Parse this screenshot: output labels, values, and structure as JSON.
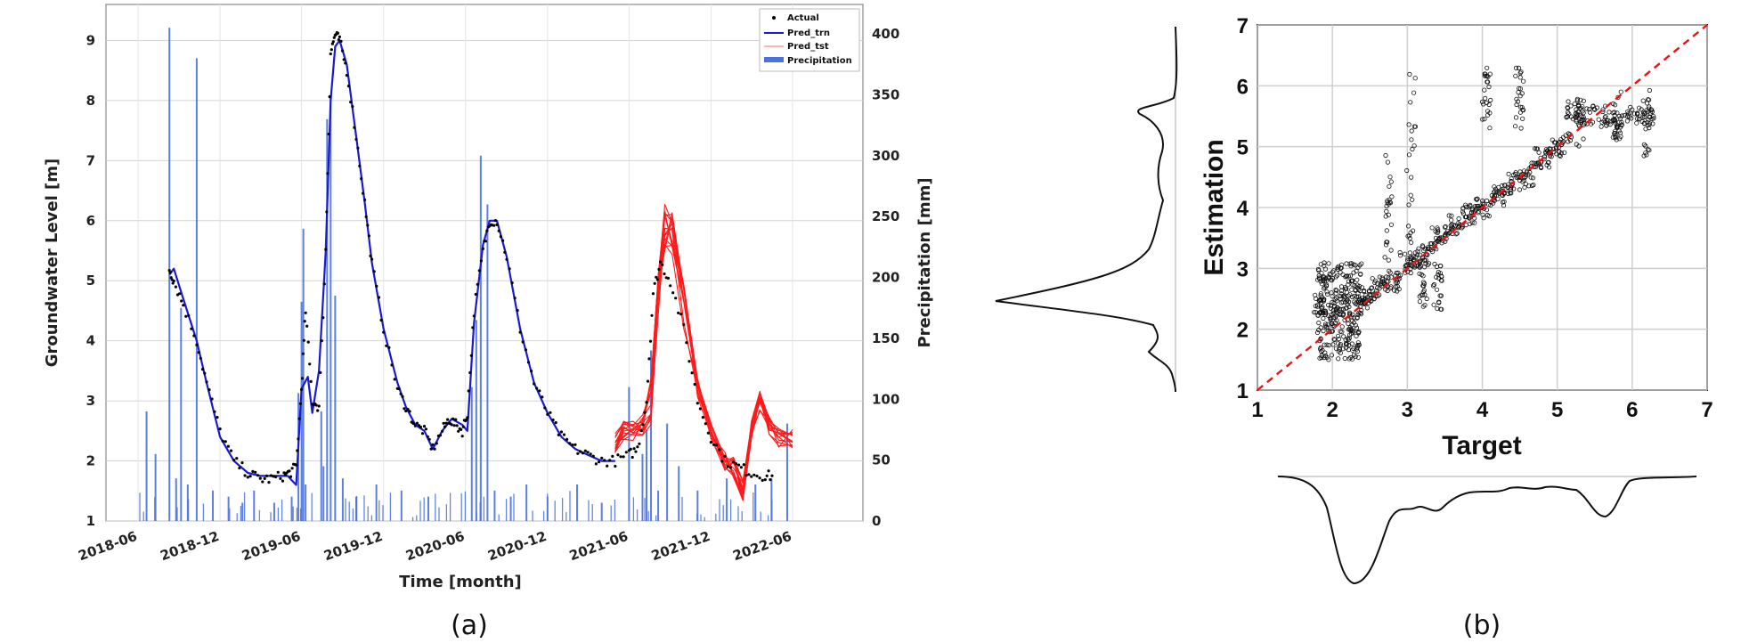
{
  "panels": {
    "a": "(a)",
    "b": "(b)"
  },
  "chart_data": [
    {
      "type": "line",
      "panel": "(a)",
      "xlabel": "Time [month]",
      "ylabel": "Groundwater Level [m]",
      "y2label": "Precipitation [mm]",
      "x_ticks": [
        "2018-06",
        "2018-12",
        "2019-06",
        "2019-12",
        "2020-06",
        "2020-12",
        "2021-06",
        "2021-12",
        "2022-06"
      ],
      "ylim": [
        1,
        9.6
      ],
      "y_ticks": [
        1,
        2,
        3,
        4,
        5,
        6,
        7,
        8,
        9
      ],
      "y2lim": [
        0,
        400
      ],
      "y2_ticks": [
        0,
        50,
        100,
        150,
        200,
        250,
        300,
        350,
        400
      ],
      "grid": true,
      "legend_position": "top-right",
      "legend": [
        "Actual",
        "Pred_trn",
        "Pred_tst",
        "Precipitation"
      ],
      "colors": {
        "actual": "#000000",
        "pred_trn": "#1a1ad0",
        "pred_tst": "#ff1a1a",
        "precip": "#4a72e0"
      },
      "series": [
        {
          "name": "Actual",
          "style": "points",
          "x": [
            "2018-08-10",
            "2018-08-20",
            "2018-09-10",
            "2018-10-10",
            "2018-11-01",
            "2018-12-01",
            "2019-01-01",
            "2019-02-01",
            "2019-03-01",
            "2019-03-25",
            "2019-04-20",
            "2019-05-05",
            "2019-05-20",
            "2019-06-01",
            "2019-06-10",
            "2019-06-25",
            "2019-07-10",
            "2019-07-25",
            "2019-08-05",
            "2019-08-15",
            "2019-08-25",
            "2019-09-10",
            "2019-10-01",
            "2019-10-20",
            "2019-11-05",
            "2019-12-01",
            "2020-01-01",
            "2020-01-20",
            "2020-02-10",
            "2020-03-01",
            "2020-03-20",
            "2020-04-10",
            "2020-04-25",
            "2020-05-10",
            "2020-05-25",
            "2020-06-05",
            "2020-06-20",
            "2020-07-10",
            "2020-07-25",
            "2020-08-10",
            "2020-09-01",
            "2020-10-01",
            "2020-11-01",
            "2020-12-01",
            "2021-01-01",
            "2021-02-01",
            "2021-03-01",
            "2021-04-01",
            "2021-05-01",
            "2021-06-01",
            "2021-06-20",
            "2021-07-10",
            "2021-07-25",
            "2021-08-10",
            "2021-09-01",
            "2021-10-01",
            "2021-11-01",
            "2021-12-01",
            "2022-01-01",
            "2022-02-01",
            "2022-03-01",
            "2022-04-01",
            "2022-04-20"
          ],
          "y": [
            5.2,
            5.0,
            4.6,
            4.0,
            3.3,
            2.5,
            2.0,
            1.8,
            1.7,
            1.7,
            1.75,
            1.8,
            1.9,
            3.2,
            4.5,
            3.0,
            2.9,
            5.5,
            8.8,
            9.1,
            9.0,
            8.5,
            7.4,
            6.3,
            5.3,
            4.2,
            3.2,
            2.9,
            2.6,
            2.5,
            2.2,
            2.5,
            2.7,
            2.6,
            2.5,
            2.8,
            4.5,
            5.5,
            6.0,
            6.0,
            5.4,
            4.2,
            3.3,
            2.8,
            2.4,
            2.2,
            2.1,
            2.0,
            2.0,
            2.1,
            2.2,
            3.0,
            4.8,
            5.3,
            5.0,
            4.2,
            3.0,
            2.4,
            2.0,
            1.9,
            1.8,
            1.75,
            1.75
          ]
        },
        {
          "name": "Pred_trn",
          "style": "line",
          "x": [
            "2018-08-10",
            "2018-08-20",
            "2018-09-10",
            "2018-10-10",
            "2018-11-01",
            "2018-12-01",
            "2019-01-01",
            "2019-02-01",
            "2019-03-01",
            "2019-04-01",
            "2019-05-01",
            "2019-05-20",
            "2019-06-01",
            "2019-06-15",
            "2019-06-25",
            "2019-07-10",
            "2019-07-25",
            "2019-08-05",
            "2019-08-15",
            "2019-08-25",
            "2019-09-10",
            "2019-10-01",
            "2019-10-20",
            "2019-11-05",
            "2019-12-01",
            "2020-01-01",
            "2020-01-20",
            "2020-02-10",
            "2020-03-01",
            "2020-03-20",
            "2020-04-10",
            "2020-05-01",
            "2020-05-25",
            "2020-06-05",
            "2020-06-20",
            "2020-07-10",
            "2020-07-25",
            "2020-08-10",
            "2020-09-01",
            "2020-10-01",
            "2020-11-01",
            "2020-12-01",
            "2021-01-01",
            "2021-02-01",
            "2021-03-01",
            "2021-04-01",
            "2021-05-01"
          ],
          "y": [
            5.1,
            5.2,
            4.7,
            4.0,
            3.3,
            2.4,
            2.0,
            1.8,
            1.75,
            1.75,
            1.75,
            1.6,
            3.2,
            3.4,
            2.8,
            3.5,
            5.5,
            8.0,
            8.9,
            9.0,
            8.6,
            7.4,
            6.3,
            5.3,
            4.2,
            3.3,
            2.9,
            2.6,
            2.5,
            2.2,
            2.5,
            2.7,
            2.6,
            2.5,
            4.3,
            5.6,
            6.0,
            6.0,
            5.4,
            4.2,
            3.3,
            2.8,
            2.4,
            2.2,
            2.1,
            2.0,
            2.0
          ]
        },
        {
          "name": "Pred_tst",
          "style": "band",
          "x": [
            "2021-05-01",
            "2021-05-20",
            "2021-06-10",
            "2021-07-01",
            "2021-07-20",
            "2021-08-05",
            "2021-08-20",
            "2021-09-05",
            "2021-10-01",
            "2021-11-01",
            "2021-12-01",
            "2022-01-01",
            "2022-01-20",
            "2022-02-10",
            "2022-03-01",
            "2022-03-20",
            "2022-04-10",
            "2022-05-01",
            "2022-06-01"
          ],
          "y": [
            2.3,
            2.5,
            2.5,
            2.6,
            3.0,
            4.8,
            5.9,
            5.8,
            4.6,
            3.2,
            2.5,
            2.0,
            1.9,
            1.5,
            2.5,
            3.0,
            2.6,
            2.4,
            2.35
          ]
        }
      ],
      "precipitation": {
        "name": "Precipitation",
        "x": [
          "2018-06-20",
          "2018-07-10",
          "2018-08-10",
          "2018-08-25",
          "2018-09-05",
          "2018-09-20",
          "2018-10-10",
          "2018-11-15",
          "2018-12-20",
          "2019-01-20",
          "2019-02-15",
          "2019-04-01",
          "2019-05-10",
          "2019-05-25",
          "2019-06-01",
          "2019-06-05",
          "2019-06-10",
          "2019-07-15",
          "2019-07-20",
          "2019-07-28",
          "2019-08-05",
          "2019-08-15",
          "2019-09-01",
          "2019-10-01",
          "2019-11-15",
          "2020-01-10",
          "2020-03-10",
          "2020-06-15",
          "2020-06-25",
          "2020-07-05",
          "2020-07-20",
          "2020-08-05",
          "2020-09-10",
          "2020-10-15",
          "2020-12-01",
          "2021-02-05",
          "2021-04-01",
          "2021-06-01",
          "2021-07-01",
          "2021-07-10",
          "2021-07-20",
          "2021-08-05",
          "2021-08-25",
          "2021-09-20",
          "2021-11-01",
          "2022-01-05",
          "2022-03-10",
          "2022-04-15",
          "2022-05-20"
        ],
        "values": [
          90,
          55,
          405,
          35,
          175,
          30,
          380,
          25,
          20,
          15,
          25,
          15,
          20,
          105,
          180,
          240,
          30,
          90,
          45,
          330,
          350,
          185,
          35,
          20,
          30,
          25,
          20,
          110,
          165,
          300,
          260,
          25,
          20,
          30,
          20,
          30,
          15,
          110,
          55,
          75,
          140,
          25,
          80,
          45,
          25,
          35,
          30,
          35,
          80
        ]
      }
    },
    {
      "type": "scatter",
      "panel": "(b)",
      "xlabel": "Target",
      "ylabel": "Estimation",
      "xlim": [
        1,
        7
      ],
      "ylim": [
        1,
        7
      ],
      "x_ticks": [
        1,
        2,
        3,
        4,
        5,
        6,
        7
      ],
      "y_ticks": [
        1,
        2,
        3,
        4,
        5,
        6,
        7
      ],
      "grid": true,
      "reference_line": {
        "style": "dashed",
        "color": "#ee1111",
        "x": [
          1,
          7
        ],
        "y": [
          1,
          7
        ]
      },
      "series": [
        {
          "name": "",
          "x": [
            1.8,
            2.0,
            2.2,
            2.4,
            2.6,
            2.8,
            3.0,
            3.2,
            3.4,
            3.6,
            3.8,
            4.0,
            4.2,
            4.4,
            4.6,
            4.8,
            5.0,
            5.2,
            5.4,
            5.6,
            5.8,
            6.0,
            6.2
          ],
          "y": [
            2.4,
            2.2,
            2.4,
            2.5,
            2.7,
            2.8,
            3.1,
            3.2,
            3.5,
            3.7,
            3.9,
            4.0,
            4.2,
            4.4,
            4.5,
            4.8,
            5.0,
            5.6,
            5.5,
            5.5,
            5.4,
            5.5,
            5.5
          ]
        }
      ],
      "marginal_y": "density curve",
      "marginal_x": "density curve"
    }
  ]
}
